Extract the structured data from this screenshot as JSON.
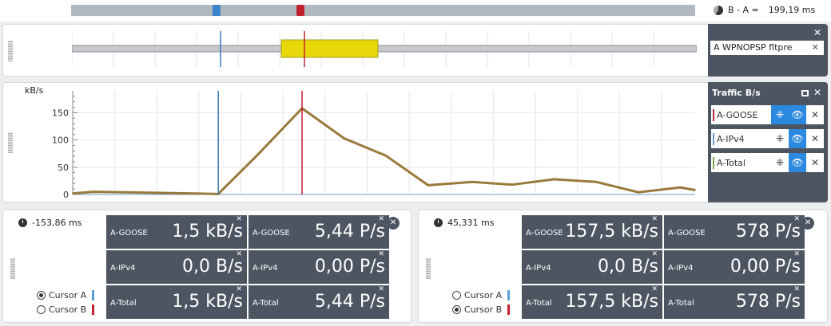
{
  "colors": {
    "cursor_a": "#3a78b5",
    "cursor_b": "#c0202e",
    "series_line": "#9a7a3c",
    "goose": "#b42a3a",
    "ipv4": "#6a9ac9",
    "total": "#7aa84a",
    "accent": "#2b8ae0",
    "panel_dark": "#4c5561",
    "highlight": "#e8d80a"
  },
  "topbar": {
    "diff_label": "B - A =",
    "diff_value": "199,19 ms",
    "icon": "pie-clock-icon"
  },
  "filter_panel": {
    "filter_text": "A WPNOPSP fltpre"
  },
  "chart_panel": {
    "legend_title": "Traffic B/s",
    "legend": [
      {
        "label": "A-GOOSE"
      },
      {
        "label": "A-IPv4"
      },
      {
        "label": "A-Total"
      }
    ]
  },
  "chart_data": {
    "type": "line",
    "ylabel": "kB/s",
    "yticks": [
      "0",
      "50",
      "100",
      "150"
    ],
    "ylim": [
      0,
      190
    ],
    "xlim_ms": [
      -500,
      980
    ],
    "grid": true,
    "cursors_ms": {
      "A": -153.86,
      "B": 45.331
    },
    "series": [
      {
        "name": "A-Total",
        "x_ms": [
          -500,
          -450,
          -290,
          -153.86,
          -60,
          45.331,
          145,
          245,
          345,
          450,
          545,
          645,
          745,
          845,
          945,
          980
        ],
        "values": [
          2,
          5,
          3,
          1,
          73,
          158,
          103,
          71,
          17,
          23,
          18,
          28,
          23,
          4,
          13,
          8
        ]
      },
      {
        "name": "A-IPv4",
        "x_ms": [
          -500,
          980
        ],
        "values": [
          0,
          0
        ]
      }
    ]
  },
  "cursor_a": {
    "time": "-153,86 ms",
    "radio_a": "Cursor A",
    "radio_b": "Cursor B",
    "selected": "A",
    "tiles": [
      [
        "A-GOOSE",
        "1,5 kB/s",
        "A-GOOSE",
        "5,44 P/s"
      ],
      [
        "A-IPv4",
        "0,0 B/s",
        "A-IPv4",
        "0,00 P/s"
      ],
      [
        "A-Total",
        "1,5 kB/s",
        "A-Total",
        "5,44 P/s"
      ]
    ]
  },
  "cursor_b": {
    "time": "45,331 ms",
    "radio_a": "Cursor A",
    "radio_b": "Cursor B",
    "selected": "B",
    "tiles": [
      [
        "A-GOOSE",
        "157,5 kB/s",
        "A-GOOSE",
        "578 P/s"
      ],
      [
        "A-IPv4",
        "0,0 B/s",
        "A-IPv4",
        "0,00 P/s"
      ],
      [
        "A-Total",
        "157,5 kB/s",
        "A-Total",
        "578 P/s"
      ]
    ]
  }
}
